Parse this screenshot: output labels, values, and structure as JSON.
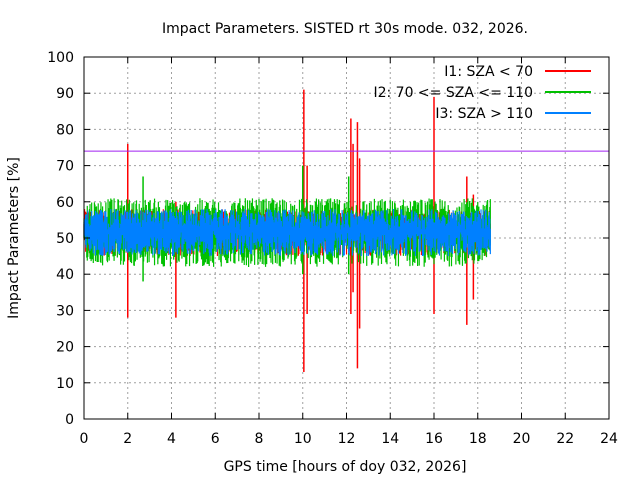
{
  "chart_data": {
    "type": "line",
    "title": "Impact Parameters. SISTED rt 30s mode. 032, 2026.",
    "xlabel": "GPS time [hours of doy 032, 2026]",
    "ylabel": "Impact Parameters [%]",
    "xlim": [
      0,
      24
    ],
    "ylim": [
      0,
      100
    ],
    "x_ticks": [
      0,
      2,
      4,
      6,
      8,
      10,
      12,
      14,
      16,
      18,
      20,
      22,
      24
    ],
    "y_ticks": [
      0,
      10,
      20,
      30,
      40,
      50,
      60,
      70,
      80,
      90,
      100
    ],
    "x_tick_labels": [
      "0",
      "2",
      "4",
      "6",
      "8",
      "10",
      "12",
      "14",
      "16",
      "18",
      "20",
      "22",
      "24"
    ],
    "y_tick_labels": [
      "0",
      "10",
      "20",
      "30",
      "40",
      "50",
      "60",
      "70",
      "80",
      "90",
      "100"
    ],
    "grid": true,
    "legend_position": "top-right",
    "threshold": {
      "value": 74,
      "color": "#a020f0"
    },
    "data_end_hour": 18.6,
    "baseline": 52,
    "series": [
      {
        "name": "I1: SZA < 70",
        "color": "#ff0000",
        "typical_range": [
          45,
          58
        ],
        "spikes": [
          {
            "x": 2.0,
            "low": 28,
            "high": 76
          },
          {
            "x": 4.2,
            "low": 28,
            "high": 60
          },
          {
            "x": 10.05,
            "low": 13,
            "high": 91
          },
          {
            "x": 10.2,
            "low": 29,
            "high": 70
          },
          {
            "x": 12.2,
            "low": 29,
            "high": 83
          },
          {
            "x": 12.3,
            "low": 35,
            "high": 76
          },
          {
            "x": 12.5,
            "low": 14,
            "high": 82
          },
          {
            "x": 12.6,
            "low": 25,
            "high": 72
          },
          {
            "x": 16.0,
            "low": 29,
            "high": 89
          },
          {
            "x": 17.5,
            "low": 26,
            "high": 67
          },
          {
            "x": 17.8,
            "low": 33,
            "high": 62
          }
        ]
      },
      {
        "name": "I2: 70 <= SZA <= 110",
        "color": "#00c000",
        "typical_range": [
          42,
          61
        ],
        "spikes": [
          {
            "x": 2.7,
            "low": 38,
            "high": 67
          },
          {
            "x": 10.0,
            "low": 40,
            "high": 70
          },
          {
            "x": 12.1,
            "low": 40,
            "high": 67
          }
        ]
      },
      {
        "name": "I3: SZA > 110",
        "color": "#0080ff",
        "typical_range": [
          45,
          58
        ],
        "spikes": []
      }
    ]
  }
}
